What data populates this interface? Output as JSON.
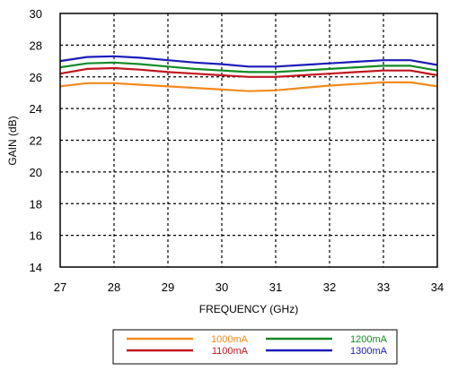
{
  "chart_data": {
    "type": "line",
    "title": "",
    "xlabel": "FREQUENCY (GHz)",
    "ylabel": "GAIN (dB)",
    "xlim": [
      27,
      34
    ],
    "ylim": [
      14,
      30
    ],
    "xticks": [
      27,
      28,
      29,
      30,
      31,
      32,
      33,
      34
    ],
    "yticks": [
      14,
      16,
      18,
      20,
      22,
      24,
      26,
      28,
      30
    ],
    "grid": true,
    "legend_position": "bottom",
    "x": [
      27,
      27.5,
      28,
      28.5,
      29,
      29.5,
      30,
      30.5,
      31,
      31.5,
      32,
      32.5,
      33,
      33.5,
      34
    ],
    "series": [
      {
        "name": "1000mA",
        "color": "#f28a1e",
        "values": [
          25.4,
          25.6,
          25.6,
          25.5,
          25.4,
          25.3,
          25.2,
          25.1,
          25.15,
          25.3,
          25.45,
          25.55,
          25.65,
          25.65,
          25.4
        ]
      },
      {
        "name": "1100mA",
        "color": "#c0161e",
        "values": [
          26.2,
          26.5,
          26.55,
          26.45,
          26.3,
          26.2,
          26.1,
          26.0,
          26.0,
          26.1,
          26.2,
          26.3,
          26.4,
          26.4,
          26.1
        ]
      },
      {
        "name": "1200mA",
        "color": "#128a25",
        "values": [
          26.6,
          26.85,
          26.9,
          26.8,
          26.65,
          26.5,
          26.4,
          26.3,
          26.3,
          26.4,
          26.5,
          26.6,
          26.7,
          26.7,
          26.4
        ]
      },
      {
        "name": "1300mA",
        "color": "#1a1ab8",
        "values": [
          27.0,
          27.25,
          27.3,
          27.2,
          27.05,
          26.9,
          26.8,
          26.65,
          26.65,
          26.75,
          26.85,
          26.95,
          27.05,
          27.05,
          26.75
        ]
      }
    ]
  }
}
